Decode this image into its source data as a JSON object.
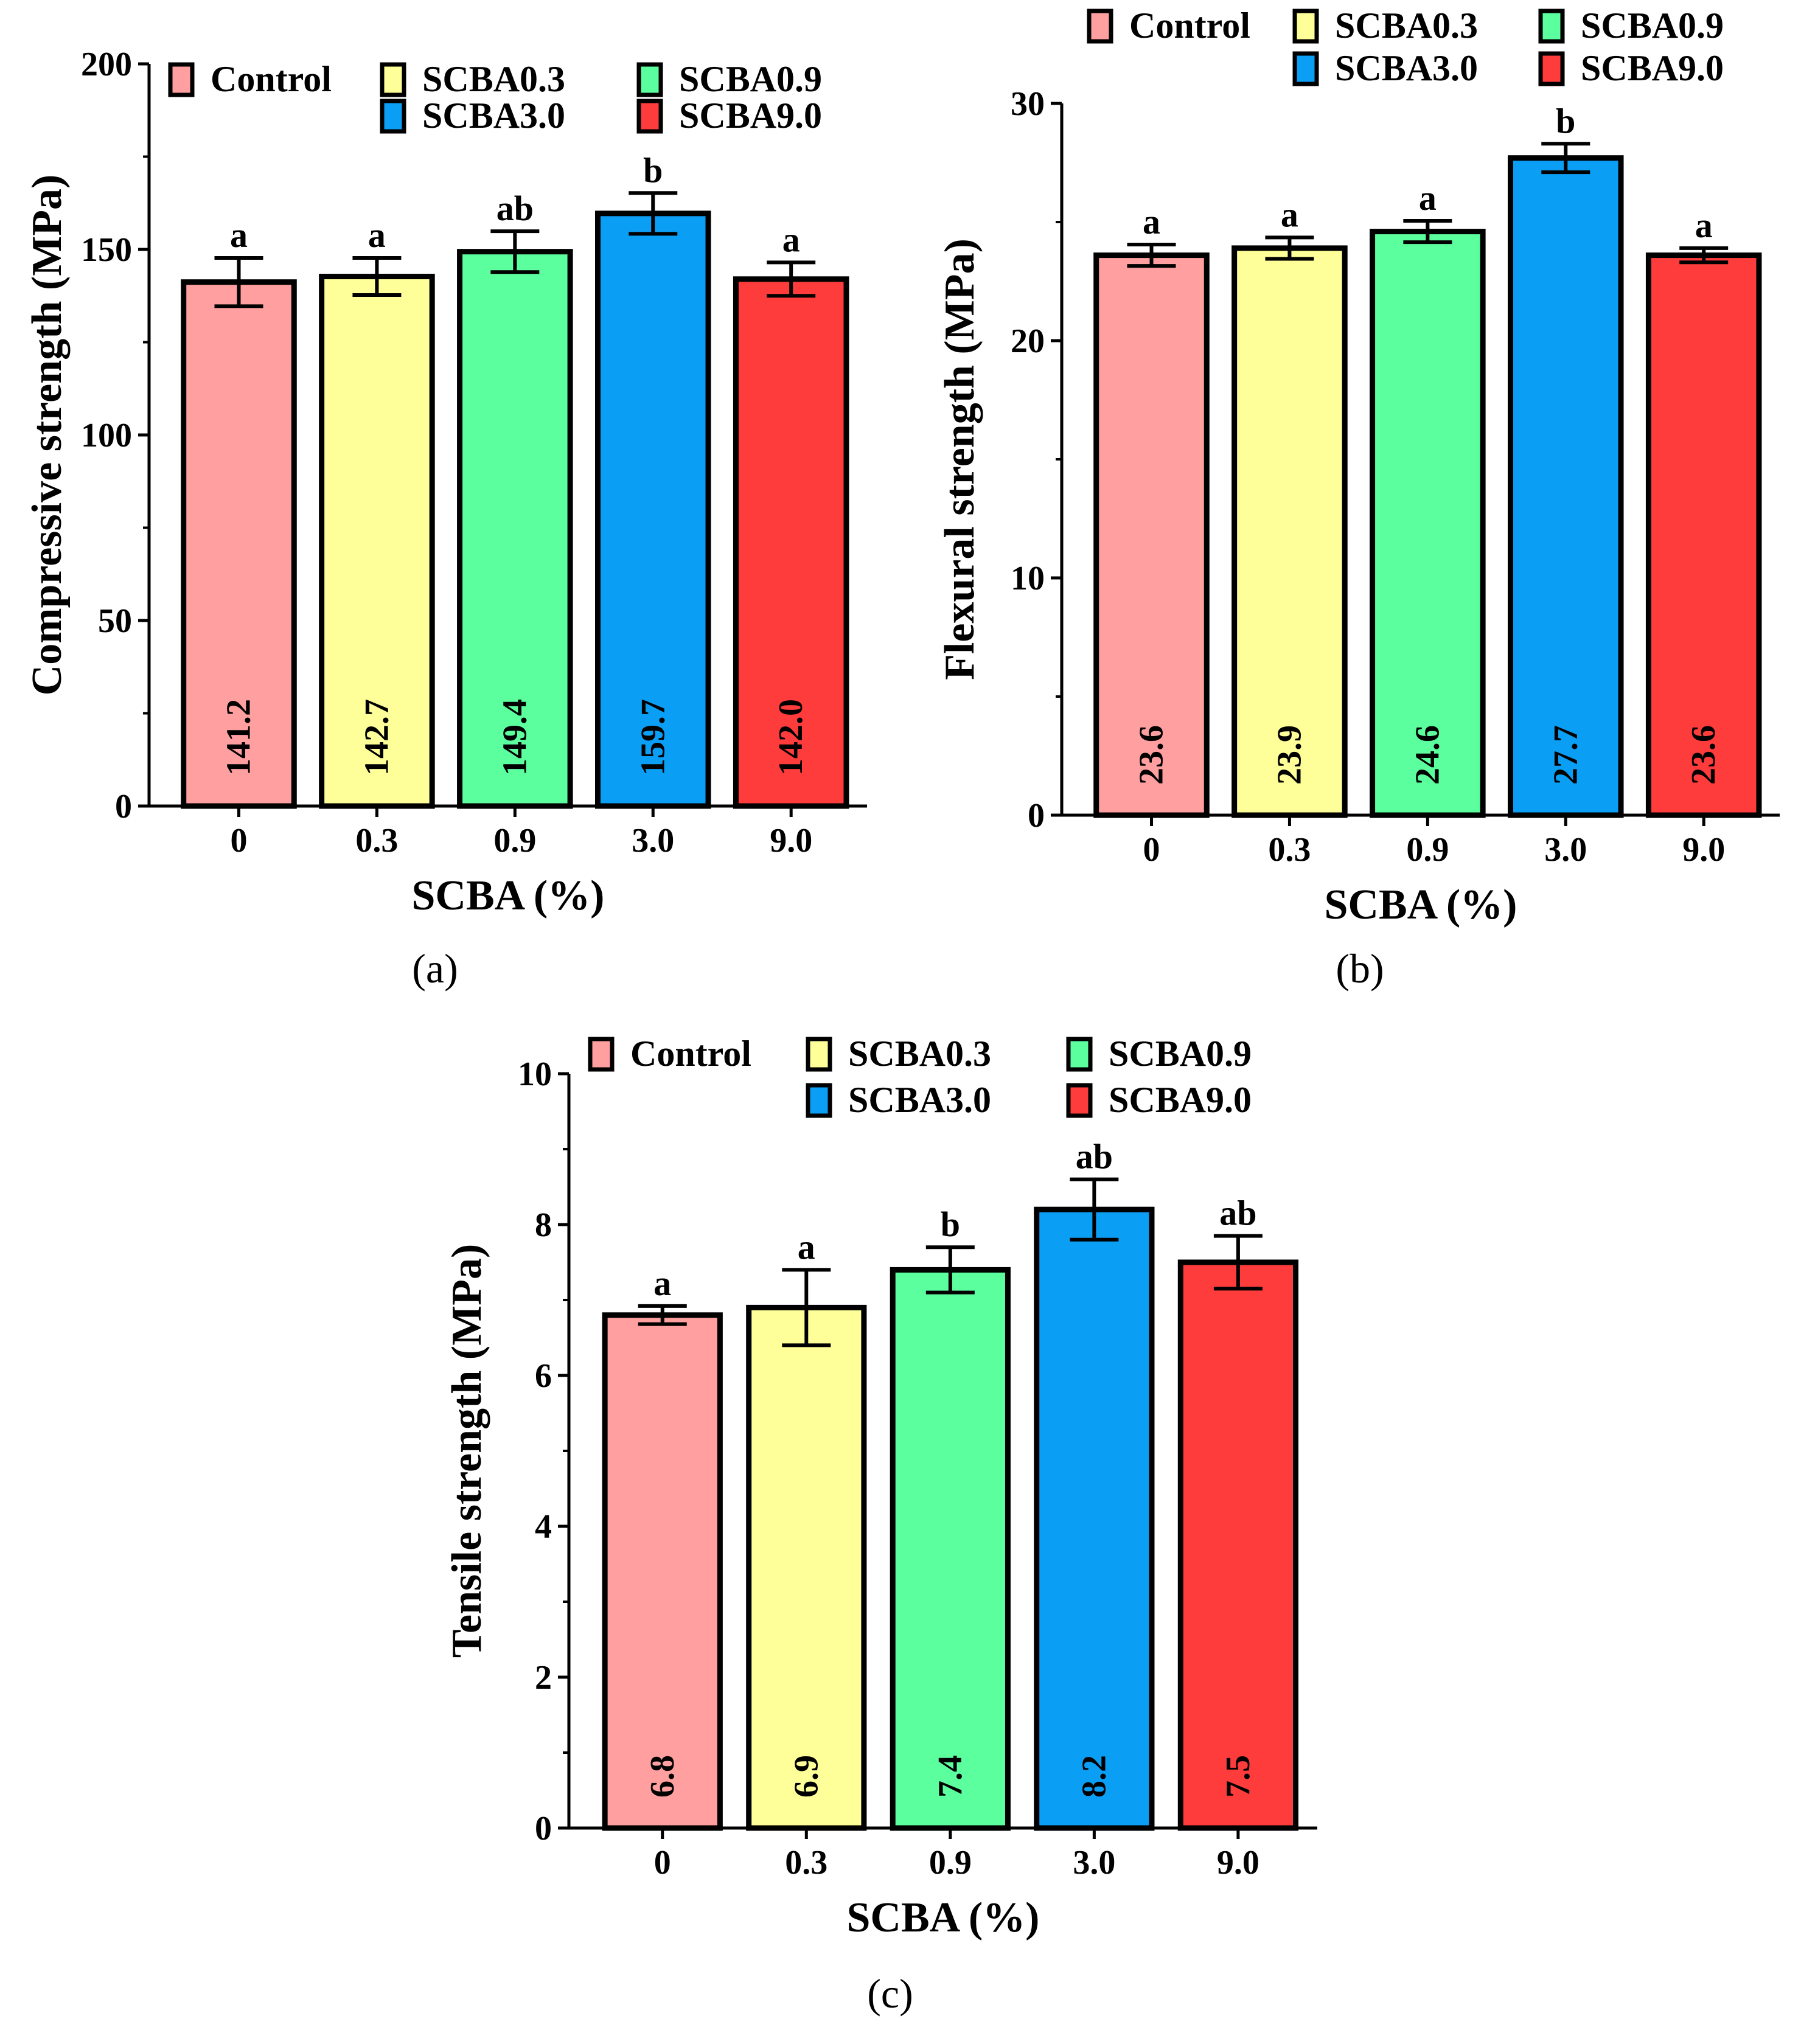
{
  "figure": {
    "legend_entries": [
      "Control",
      "SCBA0.3",
      "SCBA0.9",
      "SCBA3.0",
      "SCBA9.0"
    ],
    "colors": {
      "Control": "#ff9f9f",
      "SCBA0.3": "#ffff99",
      "SCBA0.9": "#5cff9d",
      "SCBA3.0": "#0b9ef5",
      "SCBA9.0": "#ff3c3c"
    }
  },
  "chart_data": [
    {
      "panel": "(a)",
      "type": "bar",
      "categories": [
        "0",
        "0.3",
        "0.9",
        "3.0",
        "9.0"
      ],
      "series": [
        {
          "names": [
            "Control",
            "SCBA0.3",
            "SCBA0.9",
            "SCBA3.0",
            "SCBA9.0"
          ],
          "values": [
            141.2,
            142.7,
            149.4,
            159.7,
            142.0
          ],
          "errors": [
            6.5,
            5.0,
            5.5,
            5.5,
            4.5
          ],
          "letters": [
            "a",
            "a",
            "ab",
            "b",
            "a"
          ],
          "labels": [
            "141.2",
            "142.7",
            "149.4",
            "159.7",
            "142.0"
          ]
        }
      ],
      "xlabel": "SCBA (%)",
      "ylabel": "Compressive strength (MPa)",
      "ylim": [
        0,
        200
      ],
      "yticks": [
        "0",
        "50",
        "100",
        "150",
        "200"
      ],
      "legend": "top",
      "grid": false
    },
    {
      "panel": "(b)",
      "type": "bar",
      "categories": [
        "0",
        "0.3",
        "0.9",
        "3.0",
        "9.0"
      ],
      "series": [
        {
          "names": [
            "Control",
            "SCBA0.3",
            "SCBA0.9",
            "SCBA3.0",
            "SCBA9.0"
          ],
          "values": [
            23.6,
            23.9,
            24.6,
            27.7,
            23.6
          ],
          "errors": [
            0.45,
            0.45,
            0.45,
            0.6,
            0.3
          ],
          "letters": [
            "a",
            "a",
            "a",
            "b",
            "a"
          ],
          "labels": [
            "23.6",
            "23.9",
            "24.6",
            "27.7",
            "23.6"
          ]
        }
      ],
      "xlabel": "SCBA (%)",
      "ylabel": "Flexural strength (MPa)",
      "ylim": [
        0,
        30
      ],
      "yticks": [
        "0",
        "10",
        "20",
        "30"
      ],
      "legend": "top",
      "grid": false
    },
    {
      "panel": "(c)",
      "type": "bar",
      "categories": [
        "0",
        "0.3",
        "0.9",
        "3.0",
        "9.0"
      ],
      "series": [
        {
          "names": [
            "Control",
            "SCBA0.3",
            "SCBA0.9",
            "SCBA3.0",
            "SCBA9.0"
          ],
          "values": [
            6.8,
            6.9,
            7.4,
            8.2,
            7.5
          ],
          "errors": [
            0.12,
            0.5,
            0.3,
            0.4,
            0.35
          ],
          "letters": [
            "a",
            "a",
            "b",
            "ab",
            "ab"
          ],
          "labels": [
            "6.8",
            "6.9",
            "7.4",
            "8.2",
            "7.5"
          ]
        }
      ],
      "xlabel": "SCBA (%)",
      "ylabel": "Tensile strength (MPa)",
      "ylim": [
        0,
        10
      ],
      "yticks": [
        "0",
        "2",
        "4",
        "6",
        "8",
        "10"
      ],
      "legend": "top",
      "grid": false
    }
  ]
}
